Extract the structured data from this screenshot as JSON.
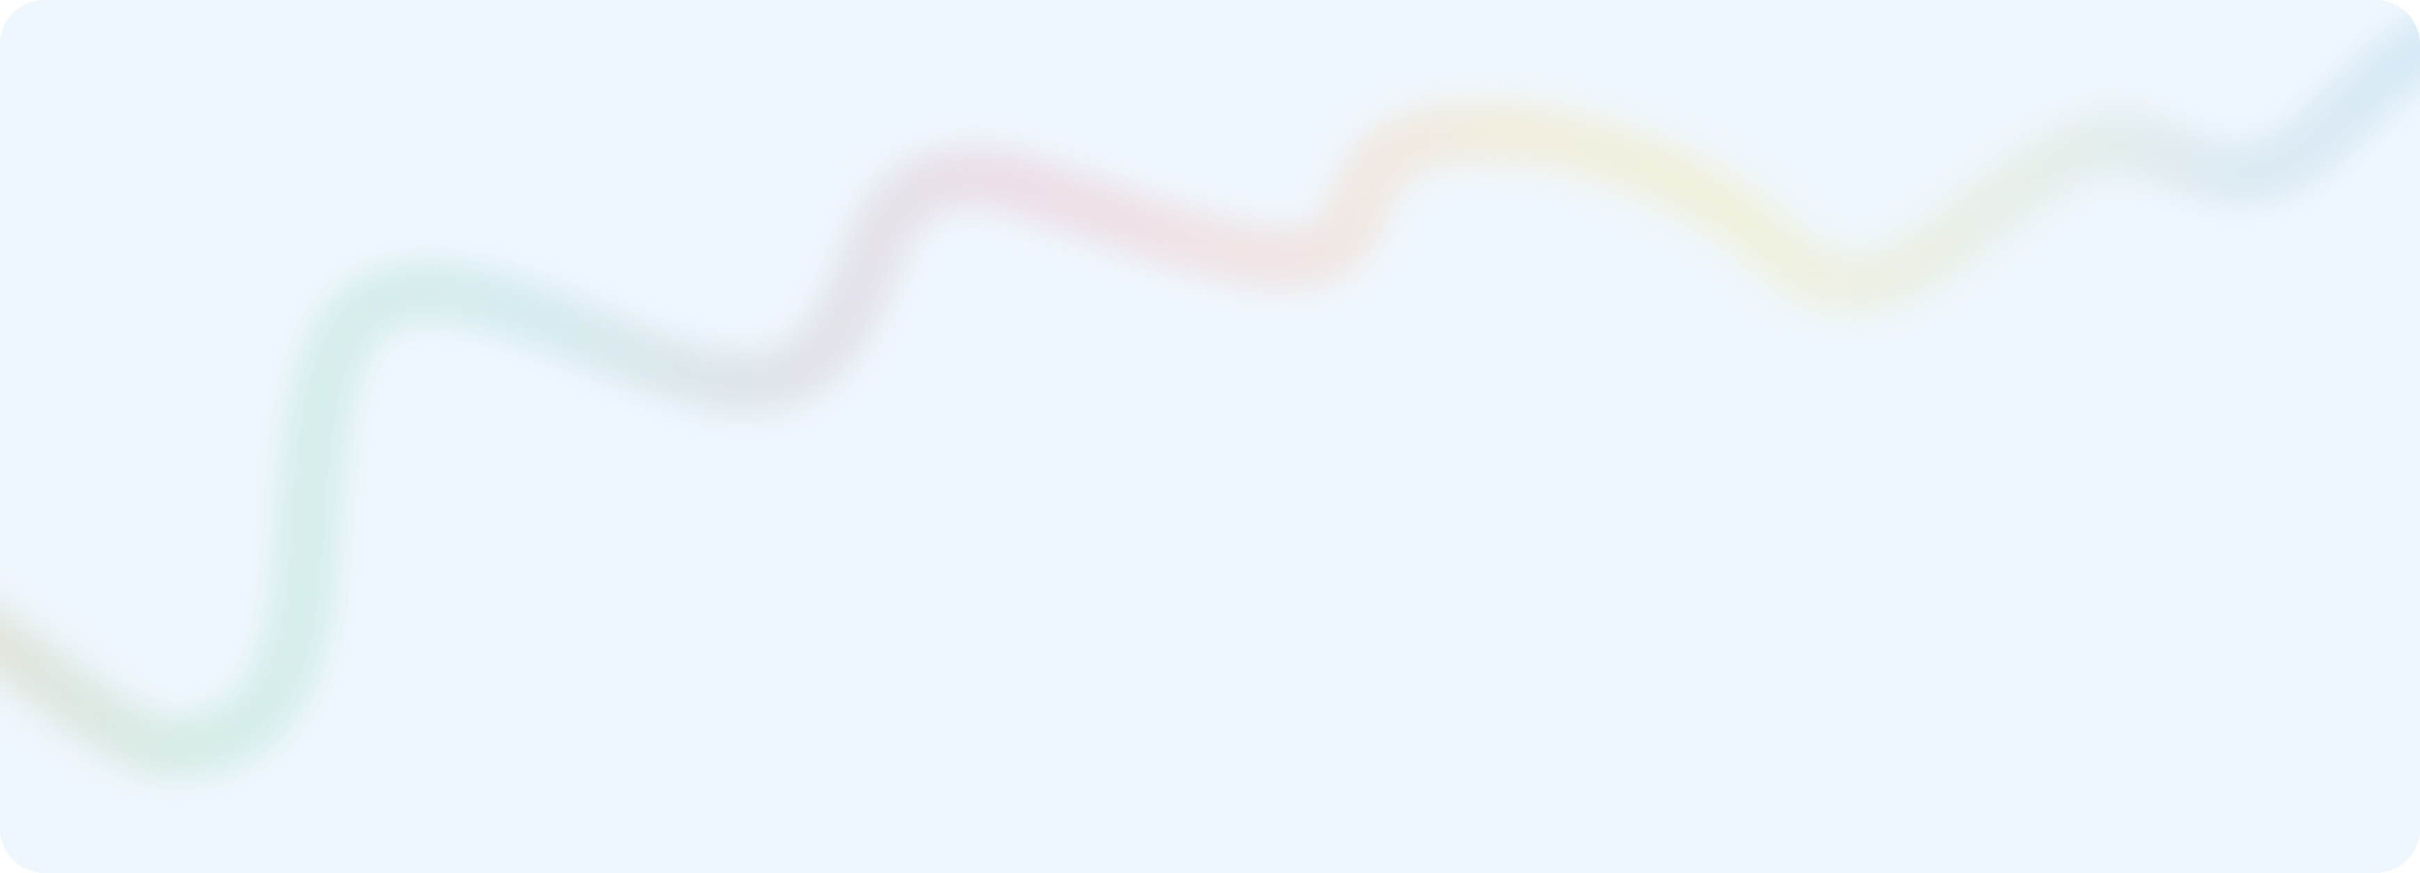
{
  "card": {
    "background": "#EFF7FE"
  },
  "wave": {
    "style": "blurred-gradient-stroke",
    "colors": [
      "#E2E6DE",
      "#D5EEEA",
      "#D7ECEF",
      "#E1E4EA",
      "#EDDFE9",
      "#F0E5E5",
      "#F2EEDF",
      "#F1F2DF",
      "#E7EFEA",
      "#DCEAF3",
      "#D8EAF6"
    ]
  }
}
